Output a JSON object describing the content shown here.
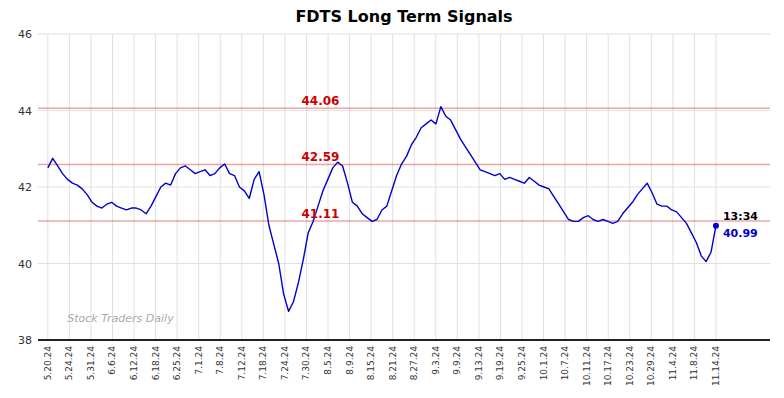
{
  "chart_data": {
    "type": "line",
    "title": "FDTS Long Term Signals",
    "color": "#0000cc",
    "grid": true,
    "x": [
      0,
      1,
      2,
      3,
      4,
      5,
      6,
      7,
      8,
      9,
      10,
      11,
      12,
      13,
      14,
      15,
      16,
      17,
      18,
      19,
      20,
      21,
      22,
      23,
      24,
      25,
      26,
      27,
      28,
      29,
      30,
      31,
      32,
      33,
      34,
      35,
      36,
      37,
      38,
      39,
      40,
      41,
      42,
      43,
      44,
      45,
      46,
      47,
      48,
      49,
      50,
      51,
      52,
      53,
      54,
      55,
      56,
      57,
      58,
      59,
      60,
      61,
      62,
      63,
      64,
      65,
      66,
      67,
      68,
      69,
      70,
      71,
      72,
      73,
      74,
      75,
      76,
      77,
      78,
      79,
      80,
      81,
      82,
      83,
      84,
      85,
      86,
      87,
      88,
      89,
      90,
      91,
      92,
      93,
      94,
      95,
      96,
      97,
      98,
      99,
      100,
      101,
      102,
      103,
      104,
      105,
      106,
      107,
      108,
      109,
      110,
      111,
      112,
      113,
      114,
      115,
      116,
      117,
      118,
      119,
      120,
      121,
      122,
      123,
      124,
      125,
      126,
      127,
      128,
      129,
      130,
      131,
      132,
      133,
      134,
      135,
      136
    ],
    "values": [
      42.5,
      42.75,
      42.55,
      42.35,
      42.2,
      42.1,
      42.05,
      41.95,
      41.8,
      41.6,
      41.5,
      41.45,
      41.55,
      41.6,
      41.5,
      41.45,
      41.4,
      41.45,
      41.45,
      41.4,
      41.3,
      41.5,
      41.75,
      42.0,
      42.1,
      42.05,
      42.35,
      42.5,
      42.55,
      42.45,
      42.35,
      42.4,
      42.45,
      42.3,
      42.35,
      42.5,
      42.6,
      42.35,
      42.3,
      42.0,
      41.9,
      41.7,
      42.2,
      42.4,
      41.8,
      41.0,
      40.5,
      40.0,
      39.2,
      38.75,
      39.0,
      39.5,
      40.1,
      40.8,
      41.1,
      41.5,
      41.9,
      42.2,
      42.5,
      42.65,
      42.55,
      42.1,
      41.6,
      41.5,
      41.3,
      41.2,
      41.1,
      41.15,
      41.4,
      41.5,
      41.9,
      42.3,
      42.6,
      42.8,
      43.1,
      43.3,
      43.55,
      43.65,
      43.75,
      43.65,
      44.1,
      43.85,
      43.75,
      43.5,
      43.25,
      43.05,
      42.85,
      42.65,
      42.45,
      42.4,
      42.35,
      42.3,
      42.35,
      42.2,
      42.25,
      42.2,
      42.15,
      42.1,
      42.25,
      42.15,
      42.05,
      42.0,
      41.95,
      41.75,
      41.55,
      41.35,
      41.15,
      41.1,
      41.1,
      41.2,
      41.25,
      41.15,
      41.1,
      41.15,
      41.1,
      41.05,
      41.1,
      41.3,
      41.45,
      41.6,
      41.8,
      41.95,
      42.1,
      41.85,
      41.55,
      41.5,
      41.5,
      41.4,
      41.35,
      41.2,
      41.05,
      40.8,
      40.55,
      40.2,
      40.05,
      40.3,
      40.99
    ],
    "xlim": [
      -2,
      147
    ],
    "xticks": [
      {
        "value": 0,
        "label": "5.20.24"
      },
      {
        "value": 4.3871,
        "label": "5.24.24"
      },
      {
        "value": 8.7742,
        "label": "5.31.24"
      },
      {
        "value": 13.1613,
        "label": "6.6.24"
      },
      {
        "value": 17.5484,
        "label": "6.12.24"
      },
      {
        "value": 21.9355,
        "label": "6.18.24"
      },
      {
        "value": 26.3226,
        "label": "6.25.24"
      },
      {
        "value": 30.7097,
        "label": "7.1.24"
      },
      {
        "value": 35.0968,
        "label": "7.8.24"
      },
      {
        "value": 39.4839,
        "label": "7.12.24"
      },
      {
        "value": 43.871,
        "label": "7.18.24"
      },
      {
        "value": 48.2581,
        "label": "7.24.24"
      },
      {
        "value": 52.6452,
        "label": "7.30.24"
      },
      {
        "value": 57.0323,
        "label": "8.5.24"
      },
      {
        "value": 61.4194,
        "label": "8.9.24"
      },
      {
        "value": 65.8065,
        "label": "8.15.24"
      },
      {
        "value": 70.1935,
        "label": "8.21.24"
      },
      {
        "value": 74.5806,
        "label": "8.27.24"
      },
      {
        "value": 78.9677,
        "label": "9.3.24"
      },
      {
        "value": 83.3548,
        "label": "9.9.24"
      },
      {
        "value": 87.7419,
        "label": "9.13.24"
      },
      {
        "value": 92.129,
        "label": "9.19.24"
      },
      {
        "value": 96.5161,
        "label": "9.25.24"
      },
      {
        "value": 100.9032,
        "label": "10.1.24"
      },
      {
        "value": 105.2903,
        "label": "10.7.24"
      },
      {
        "value": 109.6774,
        "label": "10.11.24"
      },
      {
        "value": 114.0645,
        "label": "10.17.24"
      },
      {
        "value": 118.4516,
        "label": "10.23.24"
      },
      {
        "value": 122.8387,
        "label": "10.29.24"
      },
      {
        "value": 127.2258,
        "label": "11.4.24"
      },
      {
        "value": 131.6129,
        "label": "11.8.24"
      },
      {
        "value": 136,
        "label": "11.14.24"
      }
    ],
    "ylim": [
      38,
      46
    ],
    "yticks": [
      38,
      40,
      42,
      44,
      46
    ],
    "reference_lines": [
      {
        "value": 44.06,
        "label": "44.06",
        "color": "#cc0000"
      },
      {
        "value": 42.59,
        "label": "42.59",
        "color": "#cc0000"
      },
      {
        "value": 41.11,
        "label": "41.11",
        "color": "#cc0000"
      }
    ],
    "end_label": {
      "time": "13:34",
      "price": "40.99"
    },
    "watermark": "Stock Traders Daily"
  }
}
